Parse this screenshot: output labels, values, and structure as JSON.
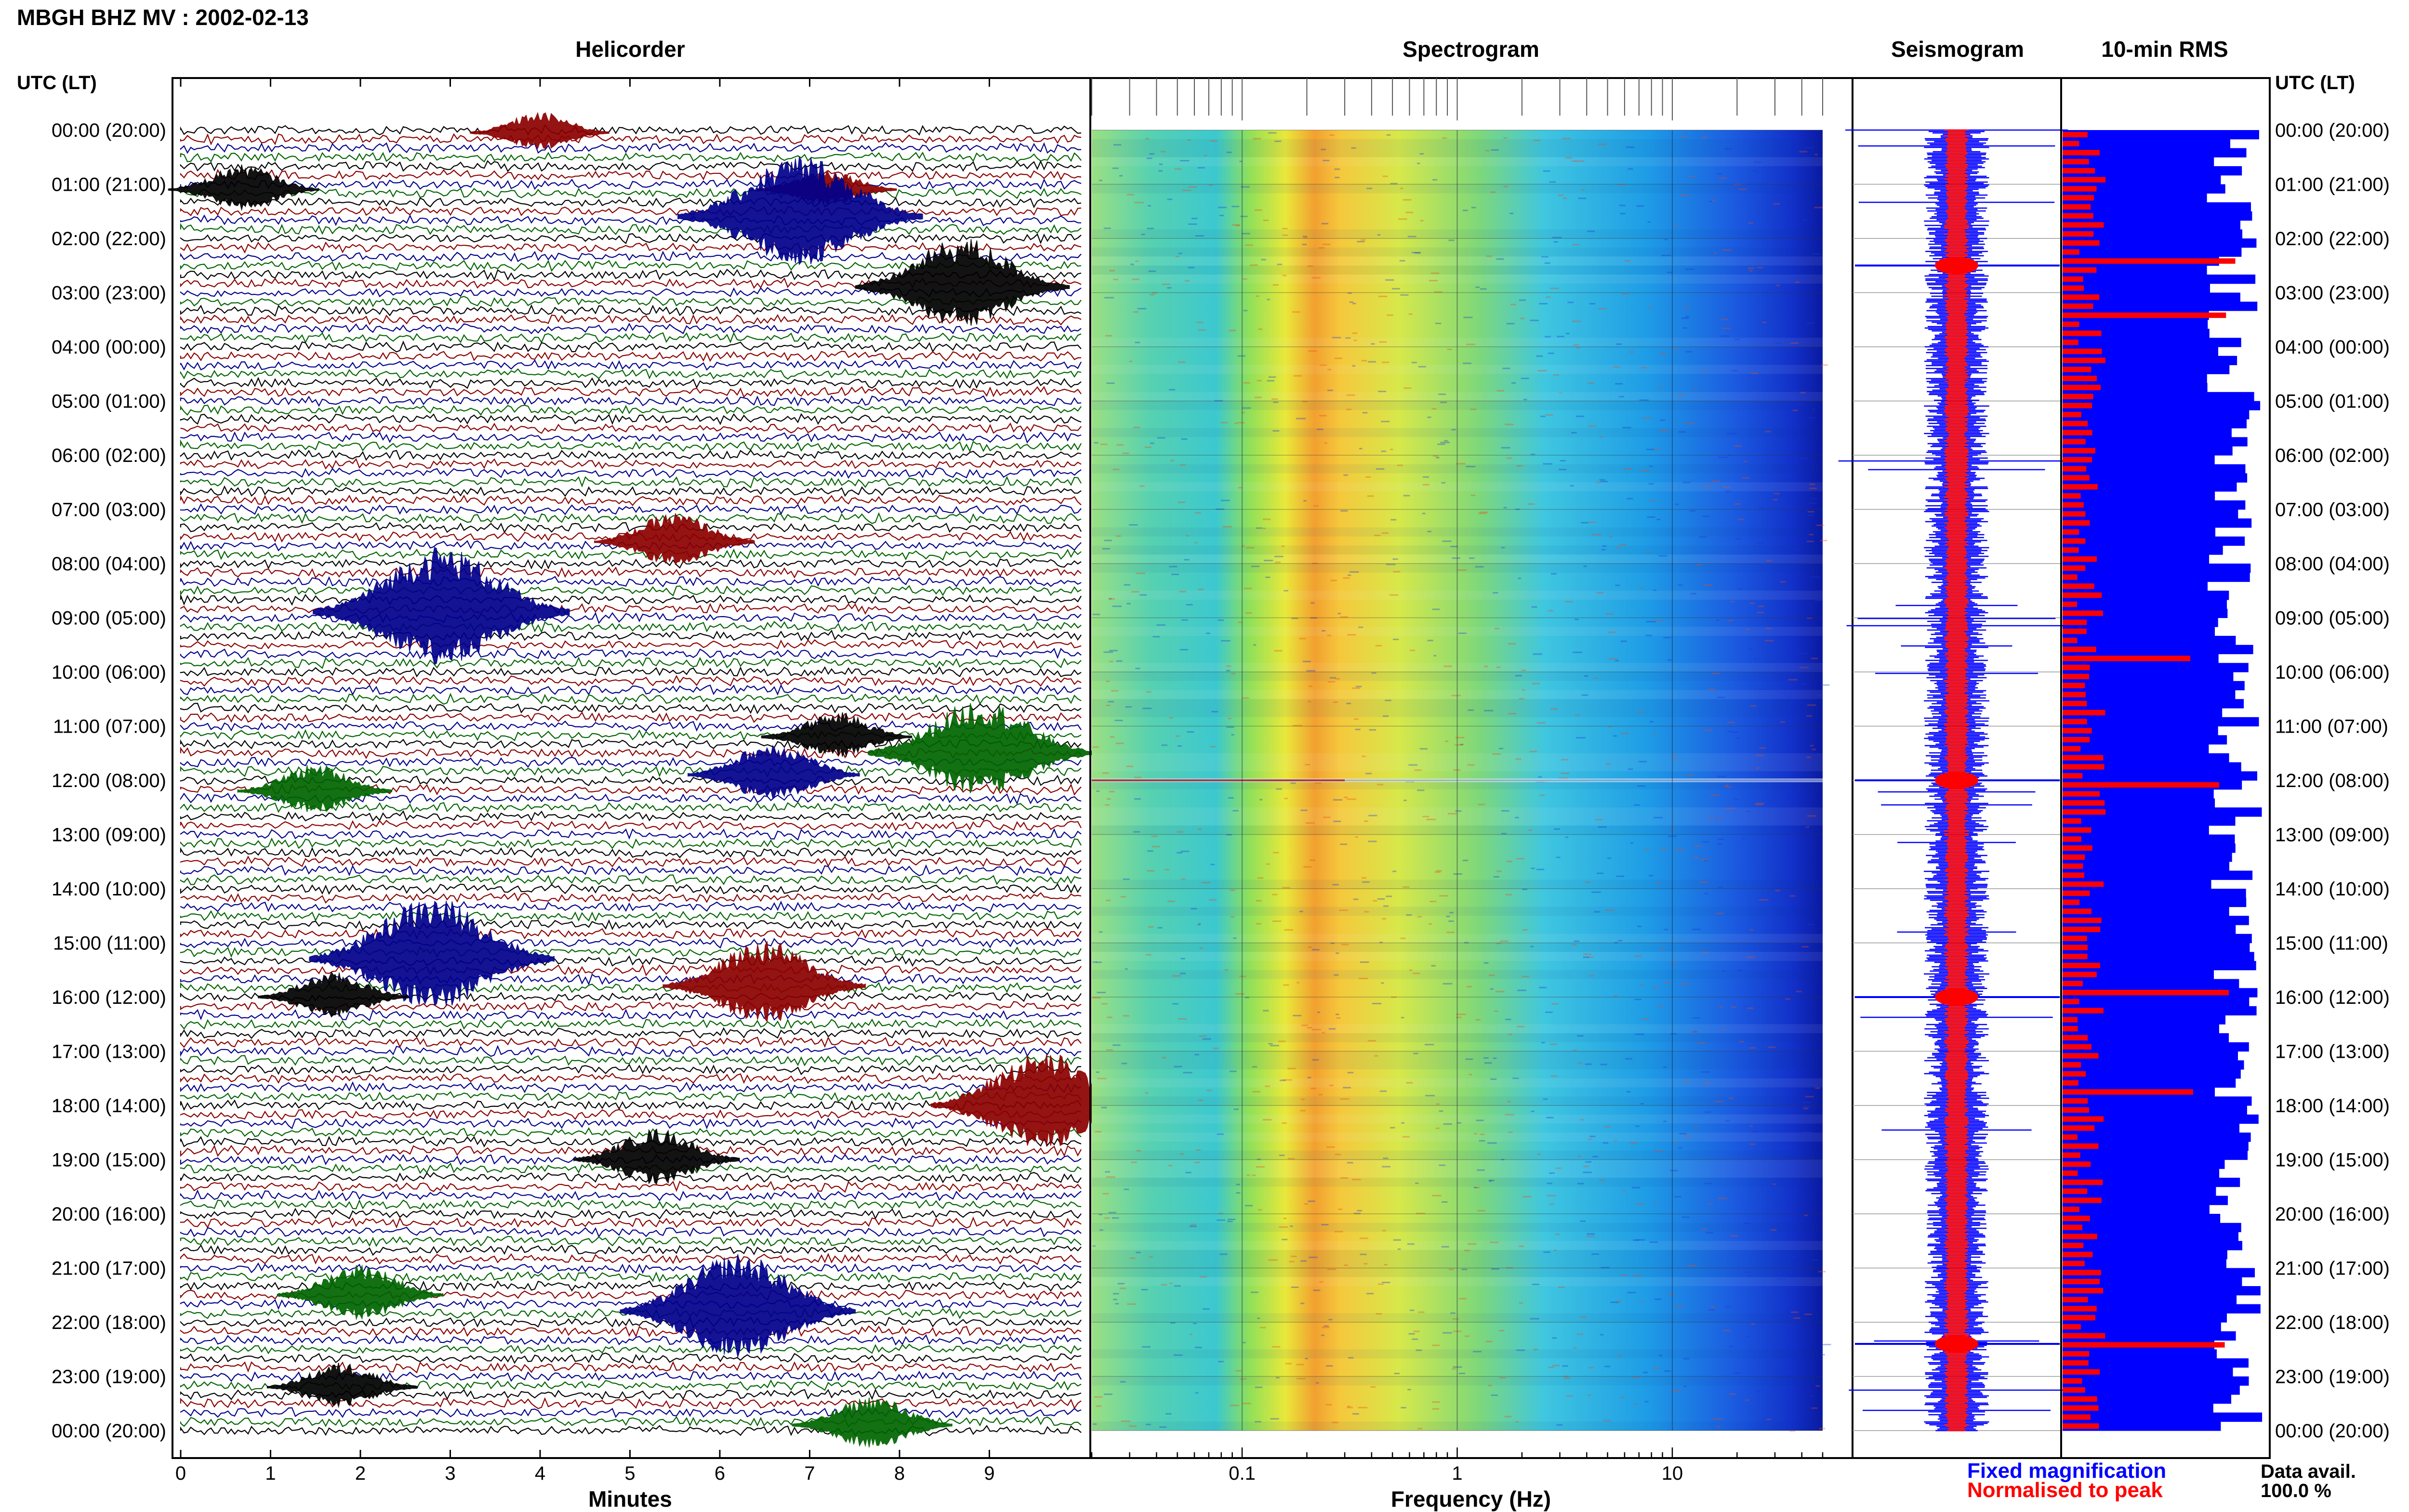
{
  "header": {
    "title": "MBGH BHZ MV : 2002-02-13",
    "utc_label": "UTC (LT)"
  },
  "panels": {
    "helicorder": "Helicorder",
    "spectrogram": "Spectrogram",
    "seismogram": "Seismogram",
    "rms": "10-min RMS"
  },
  "legend": {
    "fixed": "Fixed magnification",
    "normalised": "Normalised to peak",
    "data_avail_label": "Data avail.",
    "data_avail_value": "100.0 %"
  },
  "colors": {
    "trace_cycle": [
      "#000000",
      "#8b0000",
      "#00008b",
      "#006400"
    ],
    "blue": "#0000ff",
    "red": "#ff0000"
  },
  "chart_data": [
    {
      "type": "line",
      "panel": "Helicorder",
      "xlabel": "Minutes",
      "x_ticks": [
        "0",
        "1",
        "2",
        "3",
        "4",
        "5",
        "6",
        "7",
        "8",
        "9"
      ],
      "xlim": [
        0,
        10
      ],
      "time_labels": [
        "00:00 (20:00)",
        "01:00 (21:00)",
        "02:00 (22:00)",
        "03:00 (23:00)",
        "04:00 (00:00)",
        "05:00 (01:00)",
        "06:00 (02:00)",
        "07:00 (03:00)",
        "08:00 (04:00)",
        "09:00 (05:00)",
        "10:00 (06:00)",
        "11:00 (07:00)",
        "12:00 (08:00)",
        "13:00 (09:00)",
        "14:00 (10:00)",
        "15:00 (11:00)",
        "16:00 (12:00)",
        "17:00 (13:00)",
        "18:00 (14:00)",
        "19:00 (15:00)",
        "20:00 (16:00)",
        "21:00 (17:00)",
        "22:00 (18:00)",
        "23:00 (19:00)",
        "00:00 (20:00)"
      ],
      "lines_per_hour": 6,
      "events": [
        {
          "hour": 0.05,
          "minute": 4.0,
          "amplitude": 1.0,
          "color": "#8b0000"
        },
        {
          "hour": 1.1,
          "minute": 0.7,
          "amplitude": 1.2,
          "color": "#000000"
        },
        {
          "hour": 1.1,
          "minute": 7.2,
          "amplitude": 1.0,
          "color": "#8b0000"
        },
        {
          "hour": 1.6,
          "minute": 6.9,
          "amplitude": 3.0,
          "color": "#00008b"
        },
        {
          "hour": 2.9,
          "minute": 8.7,
          "amplitude": 2.4,
          "color": "#000000"
        },
        {
          "hour": 7.6,
          "minute": 5.5,
          "amplitude": 1.4,
          "color": "#8b0000"
        },
        {
          "hour": 8.9,
          "minute": 2.9,
          "amplitude": 3.2,
          "color": "#00008b"
        },
        {
          "hour": 11.5,
          "minute": 8.9,
          "amplitude": 2.6,
          "color": "#006400"
        },
        {
          "hour": 11.2,
          "minute": 7.3,
          "amplitude": 1.2,
          "color": "#000000"
        },
        {
          "hour": 11.9,
          "minute": 6.6,
          "amplitude": 1.6,
          "color": "#00008b"
        },
        {
          "hour": 12.2,
          "minute": 1.5,
          "amplitude": 1.3,
          "color": "#006400"
        },
        {
          "hour": 15.3,
          "minute": 2.8,
          "amplitude": 3.0,
          "color": "#00008b"
        },
        {
          "hour": 15.8,
          "minute": 6.5,
          "amplitude": 2.2,
          "color": "#8b0000"
        },
        {
          "hour": 16.0,
          "minute": 1.7,
          "amplitude": 1.2,
          "color": "#000000"
        },
        {
          "hour": 18.0,
          "minute": 9.6,
          "amplitude": 2.6,
          "color": "#8b0000"
        },
        {
          "hour": 19.0,
          "minute": 5.3,
          "amplitude": 1.5,
          "color": "#000000"
        },
        {
          "hour": 21.5,
          "minute": 2.0,
          "amplitude": 1.5,
          "color": "#006400"
        },
        {
          "hour": 21.8,
          "minute": 6.2,
          "amplitude": 2.8,
          "color": "#00008b"
        },
        {
          "hour": 23.2,
          "minute": 1.8,
          "amplitude": 1.2,
          "color": "#000000"
        },
        {
          "hour": 23.9,
          "minute": 7.7,
          "amplitude": 1.4,
          "color": "#006400"
        }
      ]
    },
    {
      "type": "heatmap",
      "panel": "Spectrogram",
      "xlabel": "Frequency (Hz)",
      "x_scale": "log",
      "xlim": [
        0.02,
        50
      ],
      "x_ticks": [
        "0.1",
        "1",
        "10"
      ],
      "peak_band_hz": [
        0.15,
        0.4
      ],
      "energetic_rows_hour": [
        12.0
      ]
    },
    {
      "type": "line",
      "panel": "Seismogram",
      "series": [
        {
          "name": "Fixed magnification",
          "color": "#0000ff"
        },
        {
          "name": "Normalised to peak",
          "color": "#ff0000"
        }
      ],
      "spikes_hour": [
        2.5,
        12.0,
        16.0,
        22.4
      ]
    },
    {
      "type": "bar",
      "panel": "10-min RMS",
      "series": [
        {
          "name": "Fixed magnification",
          "color": "#0000ff",
          "level": "near-full, variable"
        },
        {
          "name": "Normalised to peak",
          "color": "#ff0000",
          "level": "low, with peaks"
        }
      ],
      "red_peaks_hour": [
        2.4,
        3.4,
        9.7,
        12.0,
        15.9,
        17.6,
        22.4
      ]
    }
  ]
}
